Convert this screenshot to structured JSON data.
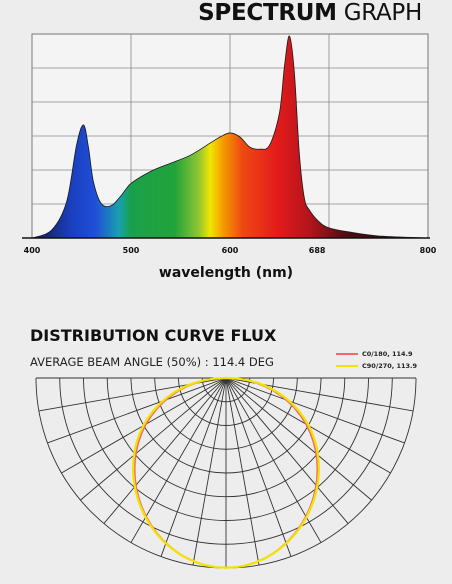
{
  "spectrum": {
    "title_bold": "SPECTRUM",
    "title_light": " GRAPH",
    "xlabel": "wavelength (nm)",
    "chart_data": {
      "type": "area",
      "title": "SPECTRUM GRAPH",
      "xlabel": "wavelength (nm)",
      "ylabel": "",
      "xlim": [
        400,
        800
      ],
      "ylim": [
        0,
        1
      ],
      "x_ticks": [
        400,
        500,
        600,
        688,
        800
      ],
      "x_tick_labels": [
        "400",
        "500",
        "600",
        "688",
        "800"
      ],
      "grid": true,
      "x": [
        400,
        420,
        435,
        445,
        452,
        457,
        462,
        470,
        480,
        490,
        500,
        520,
        540,
        560,
        580,
        590,
        600,
        610,
        620,
        630,
        640,
        650,
        655,
        660,
        665,
        670,
        675,
        680,
        690,
        700,
        720,
        750,
        800
      ],
      "y": [
        0.0,
        0.04,
        0.18,
        0.46,
        0.56,
        0.45,
        0.28,
        0.17,
        0.16,
        0.21,
        0.27,
        0.33,
        0.37,
        0.41,
        0.47,
        0.5,
        0.52,
        0.5,
        0.45,
        0.44,
        0.46,
        0.62,
        0.85,
        1.0,
        0.82,
        0.42,
        0.2,
        0.14,
        0.08,
        0.05,
        0.03,
        0.01,
        0.0
      ]
    }
  },
  "flux": {
    "title": "DISTRIBUTION CURVE FLUX",
    "beam_angle_text": "AVERAGE BEAM ANGLE  (50%) : 114.4 DEG",
    "chart_data": {
      "type": "polar",
      "title": "DISTRIBUTION CURVE FLUX",
      "series": [
        {
          "name": "C0/180, 114.9",
          "color": "#f06a6a",
          "beam_angle": 114.9
        },
        {
          "name": "C90/270, 113.9",
          "color": "#f2e200",
          "beam_angle": 113.9
        }
      ],
      "grid": true,
      "legend": "top-right"
    }
  }
}
